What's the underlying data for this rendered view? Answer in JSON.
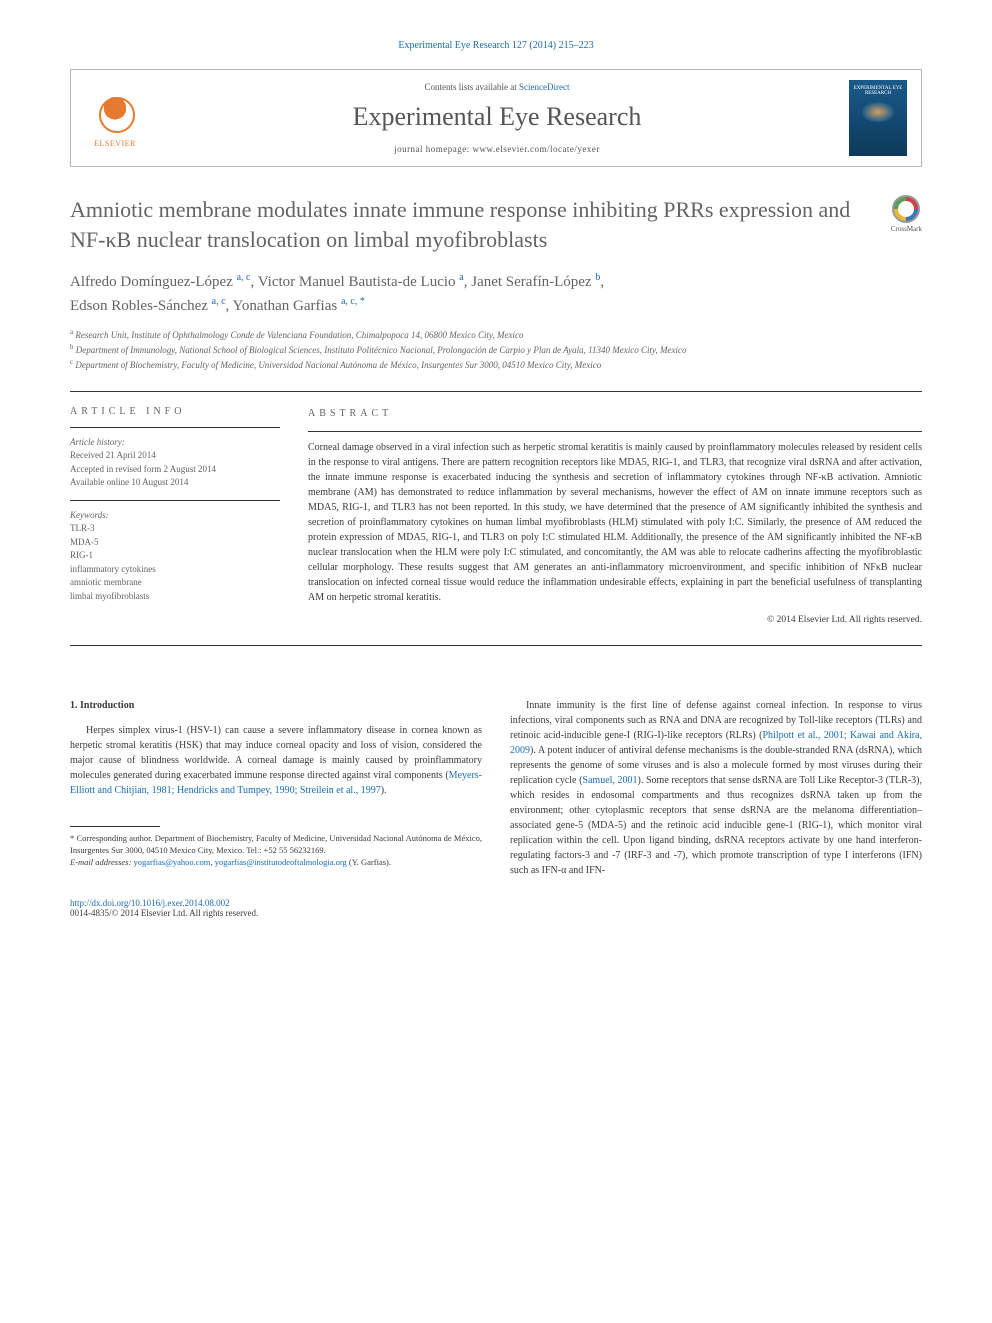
{
  "citation": "Experimental Eye Research 127 (2014) 215–223",
  "header": {
    "contents_prefix": "Contents lists available at ",
    "contents_link": "ScienceDirect",
    "journal_name": "Experimental Eye Research",
    "homepage_prefix": "journal homepage: ",
    "homepage": "www.elsevier.com/locate/yexer",
    "publisher": "ELSEVIER",
    "cover_text": "EXPERIMENTAL EYE RESEARCH"
  },
  "crossmark": "CrossMark",
  "title": "Amniotic membrane modulates innate immune response inhibiting PRRs expression and NF-κB nuclear translocation on limbal myofibroblasts",
  "authors": [
    {
      "name": "Alfredo Domínguez-López",
      "sup": "a, c"
    },
    {
      "name": "Victor Manuel Bautista-de Lucio",
      "sup": "a"
    },
    {
      "name": "Janet Serafín-López",
      "sup": "b"
    },
    {
      "name": "Edson Robles-Sánchez",
      "sup": "a, c"
    },
    {
      "name": "Yonathan Garfias",
      "sup": "a, c, *"
    }
  ],
  "affiliations": {
    "a": "Research Unit, Institute of Ophthalmology Conde de Valenciana Foundation, Chimalpopoca 14, 06800 Mexico City, Mexico",
    "b": "Department of Immunology, National School of Biological Sciences, Instituto Politécnico Nacional, Prolongación de Carpio y Plan de Ayala, 11340 Mexico City, Mexico",
    "c": "Department of Biochemistry, Faculty of Medicine, Universidad Nacional Autónoma de México, Insurgentes Sur 3000, 04510 Mexico City, Mexico"
  },
  "article_info": {
    "label": "ARTICLE INFO",
    "history_label": "Article history:",
    "received": "Received 21 April 2014",
    "accepted": "Accepted in revised form 2 August 2014",
    "online": "Available online 10 August 2014",
    "keywords_label": "Keywords:",
    "keywords": [
      "TLR-3",
      "MDA-5",
      "RIG-1",
      "inflammatory cytokines",
      "amniotic membrane",
      "limbal myofibroblasts"
    ]
  },
  "abstract": {
    "label": "ABSTRACT",
    "text": "Corneal damage observed in a viral infection such as herpetic stromal keratitis is mainly caused by proinflammatory molecules released by resident cells in the response to viral antigens. There are pattern recognition receptors like MDA5, RIG-1, and TLR3, that recognize viral dsRNA and after activation, the innate immune response is exacerbated inducing the synthesis and secretion of inflammatory cytokines through NF-κB activation. Amniotic membrane (AM) has demonstrated to reduce inflammation by several mechanisms, however the effect of AM on innate immune receptors such as MDA5, RIG-1, and TLR3 has not been reported. In this study, we have determined that the presence of AM significantly inhibited the synthesis and secretion of proinflammatory cytokines on human limbal myofibroblasts (HLM) stimulated with poly I:C. Similarly, the presence of AM reduced the protein expression of MDA5, RIG-1, and TLR3 on poly I:C stimulated HLM. Additionally, the presence of the AM significantly inhibited the NF-κB nuclear translocation when the HLM were poly I:C stimulated, and concomitantly, the AM was able to relocate cadherins affecting the myofibroblastic cellular morphology. These results suggest that AM generates an anti-inflammatory microenvironment, and specific inhibition of NFκB nuclear translocation on infected corneal tissue would reduce the inflammation undesirable effects, explaining in part the beneficial usefulness of transplanting AM on herpetic stromal keratitis.",
    "copyright": "© 2014 Elsevier Ltd. All rights reserved."
  },
  "intro": {
    "heading": "1. Introduction",
    "para1_a": "Herpes simplex virus-1 (HSV-1) can cause a severe inflammatory disease in cornea known as herpetic stromal keratitis (HSK) that may induce corneal opacity and loss of vision, considered the major cause of blindness worldwide. A corneal damage is mainly caused by proinflammatory molecules generated during exacerbated immune response directed against viral components (",
    "para1_ref": "Meyers-Elliott and Chitjian, 1981; Hendricks and Tumpey, 1990; Streilein et al., 1997",
    "para1_b": ").",
    "para2_a": "Innate immunity is the first line of defense against corneal infection. In response to virus infections, viral components such as RNA and DNA are recognized by Toll-like receptors (TLRs) and retinoic acid-inducible gene-I (RIG-I)-like receptors (RLRs) (",
    "para2_ref1": "Philpott et al., 2001; Kawai and Akira, 2009",
    "para2_b": "). A potent inducer of antiviral defense mechanisms is the double-stranded RNA (dsRNA), which represents the genome of some viruses and is also a molecule formed by most viruses during their replication cycle (",
    "para2_ref2": "Samuel, 2001",
    "para2_c": "). Some receptors that sense dsRNA are Toll Like Receptor-3 (TLR-3), which resides in endosomal compartments and thus recognizes dsRNA taken up from the environment; other cytoplasmic receptors that sense dsRNA are the melanoma differentiation–associated gene-5 (MDA-5) and the retinoic acid inducible gene-1 (RIG-1), which monitor viral replication within the cell. Upon ligand binding, dsRNA receptors activate by one hand interferon-regulating factors-3 and -7 (IRF-3 and -7), which promote transcription of type I interferons (IFN) such as IFN-α and IFN-"
  },
  "footnotes": {
    "corr_a": "* Corresponding author. Department of Biochemistry, Faculty of Medicine, Universidad Nacional Autónoma de México, Insurgentes Sur 3000, 04510 Mexico City, Mexico. Tel.: +52 55 56232169.",
    "email_label": "E-mail addresses:",
    "email1": "yogarfias@yahoo.com",
    "email2": "yogarfias@institutodeoftalmologia.org",
    "email_tail": "(Y. Garfias)."
  },
  "footer": {
    "doi": "http://dx.doi.org/10.1016/j.exer.2014.08.002",
    "issn": "0014-4835/© 2014 Elsevier Ltd. All rights reserved."
  },
  "colors": {
    "link": "#1a6bb5",
    "text": "#3a3a3a",
    "gray": "#636363",
    "orange": "#e67a2e",
    "cover": "#1a5a8a"
  }
}
